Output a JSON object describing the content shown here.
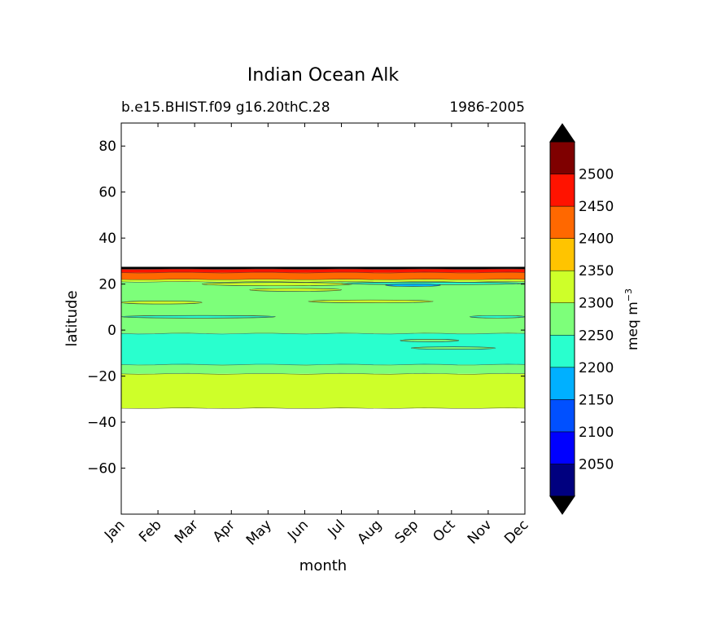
{
  "chart_data": {
    "type": "heatmap",
    "title": "Indian Ocean Alk",
    "subtitle_left": "b.e15.BHIST.f09 g16.20thC.28",
    "subtitle_right": "1986-2005",
    "xlabel": "month",
    "ylabel": "latitude",
    "x_categories": [
      "Jan",
      "Feb",
      "Mar",
      "Apr",
      "May",
      "Jun",
      "Jul",
      "Aug",
      "Sep",
      "Oct",
      "Nov",
      "Dec"
    ],
    "ylim": [
      -80,
      90
    ],
    "y_ticks": [
      80,
      60,
      40,
      20,
      0,
      -20,
      -40,
      -60
    ],
    "y_tick_labels": [
      "80",
      "60",
      "40",
      "20",
      "0",
      "−20",
      "−40",
      "−60"
    ],
    "colorbar": {
      "label_base": "meq m",
      "label_exp": "−3",
      "levels": [
        2000,
        2050,
        2100,
        2150,
        2200,
        2250,
        2300,
        2350,
        2400,
        2450,
        2500,
        2550
      ],
      "tick_values": [
        2050,
        2100,
        2150,
        2200,
        2250,
        2300,
        2350,
        2400,
        2450,
        2500
      ],
      "tick_labels": [
        "2050",
        "2100",
        "2150",
        "2200",
        "2250",
        "2300",
        "2350",
        "2400",
        "2450",
        "2500"
      ],
      "colors": [
        "#00007f",
        "#0000ff",
        "#0050ff",
        "#00b0ff",
        "#29ffce",
        "#7dff7a",
        "#ceff29",
        "#ffc400",
        "#ff6800",
        "#ff1300",
        "#7f0000"
      ],
      "extend_low_color": "#000000",
      "extend_high_color": "#000000"
    },
    "bands": [
      {
        "lat_min": -34,
        "lat_max": -19,
        "class": "2300-2350"
      },
      {
        "lat_min": -19,
        "lat_max": -15,
        "class": "2250-2300"
      },
      {
        "lat_min": -15,
        "lat_max": -1.5,
        "class": "2200-2250"
      },
      {
        "lat_min": -1.5,
        "lat_max": 21,
        "class": "2250-2300"
      },
      {
        "lat_min": 21,
        "lat_max": 22,
        "class": "2300-2350"
      },
      {
        "lat_min": 22,
        "lat_max": 25,
        "class": "2400-2450"
      },
      {
        "lat_min": 25,
        "lat_max": 26.5,
        "class": "2450-2500"
      },
      {
        "lat_min": 26.5,
        "lat_max": 27.5,
        "class": ">2550"
      }
    ],
    "patches": [
      {
        "x0": 0,
        "x1": 2.2,
        "lat": 12,
        "h": 1.3,
        "class": "2300-2350"
      },
      {
        "x0": 5.1,
        "x1": 8.5,
        "lat": 12.5,
        "h": 1.2,
        "class": "2300-2350"
      },
      {
        "x0": 0,
        "x1": 4.2,
        "lat": 5.8,
        "h": 1.1,
        "class": "2200-2250"
      },
      {
        "x0": 9.5,
        "x1": 11,
        "lat": 5.8,
        "h": 0.9,
        "class": "2200-2250"
      },
      {
        "x0": 2.2,
        "x1": 6.3,
        "lat": 20,
        "h": 1.4,
        "class": "2300-2350"
      },
      {
        "x0": 3.5,
        "x1": 6.0,
        "lat": 17.5,
        "h": 1.2,
        "class": "2300-2350"
      },
      {
        "x0": 6.0,
        "x1": 11,
        "lat": 20.3,
        "h": 1.0,
        "class": "2200-2250"
      },
      {
        "x0": 7.2,
        "x1": 8.7,
        "lat": 19.5,
        "h": 0.8,
        "class": "2150-2200"
      },
      {
        "x0": 7.6,
        "x1": 9.2,
        "lat": -4.5,
        "h": 1.0,
        "class": "2250-2300"
      },
      {
        "x0": 7.9,
        "x1": 10.2,
        "lat": -7.8,
        "h": 0.9,
        "class": "2250-2300"
      }
    ]
  }
}
